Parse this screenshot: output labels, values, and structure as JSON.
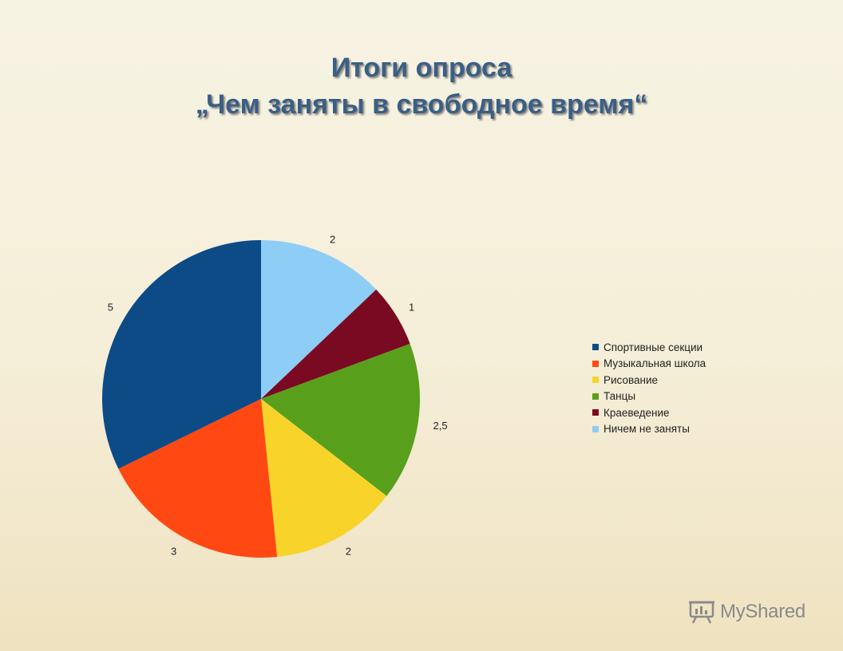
{
  "chart_data": {
    "type": "pie",
    "title": [
      "Итоги опроса",
      "„Чем заняты в свободное время“"
    ],
    "start_angle_deg": 0,
    "direction": "clockwise",
    "slices": [
      {
        "name": "Ничем не заняты",
        "value": 2,
        "label": "2",
        "color": "#8ecdf6"
      },
      {
        "name": "Краеведение",
        "value": 1,
        "label": "1",
        "color": "#7a0a22"
      },
      {
        "name": "Танцы",
        "value": 2.5,
        "label": "2,5",
        "color": "#58a01c"
      },
      {
        "name": "Рисование",
        "value": 2,
        "label": "2",
        "color": "#f8d42a"
      },
      {
        "name": "Музыкальная школа",
        "value": 3,
        "label": "3",
        "color": "#ff4812"
      },
      {
        "name": "Спортивные секции",
        "value": 5,
        "label": "5",
        "color": "#0d4b87"
      }
    ],
    "legend": [
      {
        "name": "Спортивные секции",
        "color": "#0d4b87"
      },
      {
        "name": "Музыкальная школа",
        "color": "#ff4812"
      },
      {
        "name": "Рисование",
        "color": "#f8d42a"
      },
      {
        "name": "Танцы",
        "color": "#58a01c"
      },
      {
        "name": "Краеведение",
        "color": "#7a0a22"
      },
      {
        "name": "Ничем не заняты",
        "color": "#8ecdf6"
      }
    ],
    "legend_position": "right"
  },
  "watermark": {
    "text": "MyShared",
    "icon": "presentation-board-icon"
  }
}
